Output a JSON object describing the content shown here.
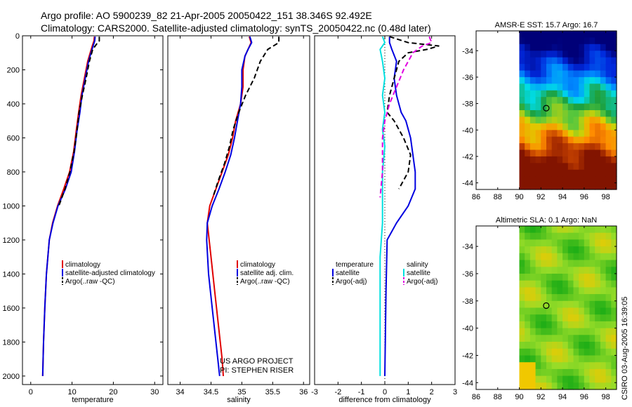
{
  "header": {
    "line1": "Argo profile: AO 5900239_82 21-Apr-2005 20050422_151 38.346S 92.492E",
    "line2": "Climatology: CARS2000. Satellite-adjusted climatology: synTS_20050422.nc (0.48d later)"
  },
  "side_label": "CSIRO 03-Aug-2005 16:39:05",
  "credit": {
    "line1": "US ARGO PROJECT",
    "line2": "PI: STEPHEN RISER"
  },
  "colors": {
    "climatology": "#e00000",
    "satellite": "#0000e0",
    "argo": "#000000",
    "temp_diff": "#000000",
    "sal_sat": "#00e0e0",
    "sal_argo": "#e000e0"
  },
  "chart_data": [
    {
      "type": "line",
      "id": "temperature",
      "xlabel": "temperature",
      "ylabel": "",
      "xlim": [
        -2,
        32
      ],
      "ylim": [
        2050,
        0
      ],
      "y_inverted": true,
      "xticks": [
        0,
        10,
        20,
        30
      ],
      "yticks": [
        0,
        200,
        400,
        600,
        800,
        1000,
        1200,
        1400,
        1600,
        1800,
        2000
      ],
      "legend": [
        "climatology",
        "satellite-adjusted climatology",
        "Argo(..raw -QC)"
      ],
      "series": [
        {
          "name": "climatology",
          "color": "#e00000",
          "dash": false,
          "points": [
            [
              15.4,
              5
            ],
            [
              15.3,
              30
            ],
            [
              14.9,
              60
            ],
            [
              14.4,
              100
            ],
            [
              13.8,
              150
            ],
            [
              13.0,
              250
            ],
            [
              12.2,
              350
            ],
            [
              11.6,
              450
            ],
            [
              11.0,
              560
            ],
            [
              10.4,
              680
            ],
            [
              9.4,
              800
            ],
            [
              8.0,
              900
            ],
            [
              6.5,
              1000
            ],
            [
              5.3,
              1100
            ],
            [
              4.5,
              1200
            ],
            [
              3.8,
              1400
            ],
            [
              3.4,
              1600
            ],
            [
              3.1,
              1800
            ],
            [
              2.9,
              2000
            ]
          ]
        },
        {
          "name": "satellite-adjusted climatology",
          "color": "#0000e0",
          "dash": false,
          "points": [
            [
              15.6,
              5
            ],
            [
              15.5,
              30
            ],
            [
              15.1,
              60
            ],
            [
              14.6,
              100
            ],
            [
              14.0,
              150
            ],
            [
              13.2,
              250
            ],
            [
              12.4,
              350
            ],
            [
              11.9,
              450
            ],
            [
              11.2,
              560
            ],
            [
              10.6,
              680
            ],
            [
              9.8,
              800
            ],
            [
              8.4,
              900
            ],
            [
              6.6,
              1000
            ],
            [
              5.4,
              1100
            ],
            [
              4.5,
              1200
            ],
            [
              3.8,
              1400
            ],
            [
              3.4,
              1600
            ],
            [
              3.1,
              1800
            ],
            [
              2.9,
              2000
            ]
          ]
        },
        {
          "name": "Argo(..raw -QC)",
          "color": "#000000",
          "dash": true,
          "points": [
            [
              16.6,
              5
            ],
            [
              16.6,
              30
            ],
            [
              15.9,
              50
            ],
            [
              15.0,
              80
            ],
            [
              14.2,
              150
            ],
            [
              13.4,
              250
            ],
            [
              12.5,
              350
            ],
            [
              11.7,
              450
            ],
            [
              11.2,
              560
            ],
            [
              10.5,
              680
            ],
            [
              9.5,
              800
            ],
            [
              8.3,
              900
            ],
            [
              6.8,
              1000
            ]
          ]
        }
      ]
    },
    {
      "type": "line",
      "id": "salinity",
      "xlabel": "salinity",
      "ylabel": "",
      "xlim": [
        33.8,
        36.1
      ],
      "ylim": [
        2050,
        0
      ],
      "y_inverted": true,
      "xticks": [
        34,
        34.5,
        35,
        35.5,
        36
      ],
      "yticks": [],
      "legend": [
        "climatology",
        "satellite adj. clim.",
        "Argo(..raw -QC)"
      ],
      "series": [
        {
          "name": "climatology",
          "color": "#e00000",
          "dash": false,
          "points": [
            [
              35.12,
              5
            ],
            [
              35.15,
              40
            ],
            [
              35.1,
              80
            ],
            [
              35.05,
              120
            ],
            [
              35.02,
              200
            ],
            [
              35.02,
              300
            ],
            [
              34.98,
              400
            ],
            [
              34.9,
              500
            ],
            [
              34.85,
              600
            ],
            [
              34.78,
              700
            ],
            [
              34.68,
              800
            ],
            [
              34.58,
              900
            ],
            [
              34.48,
              1000
            ],
            [
              34.44,
              1100
            ],
            [
              34.5,
              1300
            ],
            [
              34.56,
              1500
            ],
            [
              34.62,
              1700
            ],
            [
              34.68,
              1900
            ],
            [
              34.7,
              2000
            ]
          ]
        },
        {
          "name": "satellite adj. clim.",
          "color": "#0000e0",
          "dash": false,
          "points": [
            [
              35.13,
              5
            ],
            [
              35.16,
              40
            ],
            [
              35.1,
              80
            ],
            [
              35.05,
              120
            ],
            [
              35.0,
              200
            ],
            [
              35.0,
              300
            ],
            [
              34.98,
              400
            ],
            [
              34.93,
              500
            ],
            [
              34.88,
              600
            ],
            [
              34.82,
              700
            ],
            [
              34.73,
              800
            ],
            [
              34.63,
              900
            ],
            [
              34.52,
              1000
            ],
            [
              34.44,
              1100
            ],
            [
              34.43,
              1200
            ],
            [
              34.46,
              1400
            ],
            [
              34.52,
              1600
            ],
            [
              34.58,
              1800
            ],
            [
              34.64,
              2000
            ]
          ]
        },
        {
          "name": "Argo(..raw -QC)",
          "color": "#000000",
          "dash": true,
          "points": [
            [
              35.6,
              5
            ],
            [
              35.6,
              40
            ],
            [
              35.42,
              80
            ],
            [
              35.3,
              150
            ],
            [
              35.2,
              250
            ],
            [
              35.06,
              350
            ],
            [
              34.95,
              450
            ],
            [
              34.86,
              550
            ],
            [
              34.8,
              650
            ],
            [
              34.72,
              750
            ],
            [
              34.62,
              850
            ],
            [
              34.53,
              950
            ]
          ]
        }
      ]
    },
    {
      "type": "line",
      "id": "difference",
      "xlabel": "difference from climatology",
      "ylabel": "",
      "xlim": [
        -3,
        3
      ],
      "ylim": [
        2050,
        0
      ],
      "y_inverted": true,
      "xticks": [
        -3,
        -2,
        -1,
        0,
        1,
        2,
        3
      ],
      "yticks": [],
      "legend_left": [
        "temperature",
        "satellite",
        "Argo(-adj)"
      ],
      "legend_right": [
        "salinity",
        "satellite",
        "Argo(-adj)"
      ],
      "series": [
        {
          "name": "temperature satellite",
          "color": "#0000e0",
          "dash": false,
          "points": [
            [
              0.2,
              5
            ],
            [
              0.2,
              40
            ],
            [
              0.3,
              80
            ],
            [
              0.5,
              150
            ],
            [
              0.4,
              250
            ],
            [
              0.5,
              350
            ],
            [
              0.7,
              450
            ],
            [
              0.9,
              500
            ],
            [
              1.1,
              600
            ],
            [
              1.2,
              700
            ],
            [
              1.3,
              800
            ],
            [
              1.3,
              900
            ],
            [
              1.0,
              1000
            ],
            [
              0.5,
              1100
            ],
            [
              0.1,
              1200
            ],
            [
              0.05,
              1500
            ],
            [
              0.0,
              2000
            ]
          ]
        },
        {
          "name": "temperature Argo(-adj)",
          "color": "#000000",
          "dash": true,
          "points": [
            [
              0.2,
              5
            ],
            [
              1.0,
              40
            ],
            [
              2.3,
              60
            ],
            [
              1.8,
              80
            ],
            [
              1.0,
              100
            ],
            [
              0.6,
              150
            ],
            [
              0.4,
              250
            ],
            [
              0.2,
              350
            ],
            [
              0.1,
              450
            ],
            [
              0.4,
              500
            ],
            [
              0.8,
              600
            ],
            [
              1.1,
              700
            ],
            [
              1.0,
              800
            ],
            [
              0.6,
              900
            ]
          ]
        },
        {
          "name": "salinity satellite",
          "color": "#00e0e0",
          "dash": false,
          "points": [
            [
              -0.1,
              5
            ],
            [
              0.0,
              40
            ],
            [
              -0.2,
              80
            ],
            [
              -0.1,
              150
            ],
            [
              0.0,
              250
            ],
            [
              -0.1,
              350
            ],
            [
              0.0,
              450
            ],
            [
              -0.1,
              550
            ],
            [
              0.0,
              650
            ],
            [
              -0.1,
              800
            ],
            [
              -0.1,
              950
            ],
            [
              -0.1,
              1100
            ],
            [
              -0.2,
              1300
            ],
            [
              -0.2,
              1500
            ],
            [
              -0.2,
              1700
            ],
            [
              -0.2,
              1900
            ],
            [
              -0.2,
              2000
            ]
          ]
        },
        {
          "name": "salinity Argo(-adj)",
          "color": "#e000e0",
          "dash": true,
          "points": [
            [
              1.9,
              5
            ],
            [
              2.0,
              40
            ],
            [
              1.6,
              60
            ],
            [
              1.2,
              100
            ],
            [
              0.8,
              200
            ],
            [
              0.5,
              300
            ],
            [
              0.2,
              400
            ],
            [
              0.0,
              500
            ],
            [
              -0.1,
              600
            ],
            [
              -0.1,
              700
            ],
            [
              -0.1,
              800
            ],
            [
              -0.2,
              950
            ]
          ]
        }
      ]
    },
    {
      "type": "heatmap",
      "id": "sst_map",
      "title": "AMSR-E SST: 15.7 Argo: 16.7",
      "xlim": [
        86,
        99
      ],
      "ylim": [
        -44.5,
        -32.5
      ],
      "xticks": [
        86,
        88,
        90,
        92,
        94,
        96,
        98
      ],
      "yticks": [
        -34,
        -36,
        -38,
        -40,
        -42,
        -44
      ],
      "marker": {
        "lon": 92.492,
        "lat": -38.346
      }
    },
    {
      "type": "heatmap",
      "id": "sla_map",
      "title": "Altimetric SLA: 0.1 Argo: NaN",
      "xlim": [
        86,
        99
      ],
      "ylim": [
        -44.5,
        -32.5
      ],
      "xticks": [
        86,
        88,
        90,
        92,
        94,
        96,
        98
      ],
      "yticks": [
        -34,
        -36,
        -38,
        -40,
        -42,
        -44
      ],
      "marker": {
        "lon": 92.492,
        "lat": -38.346
      }
    }
  ]
}
